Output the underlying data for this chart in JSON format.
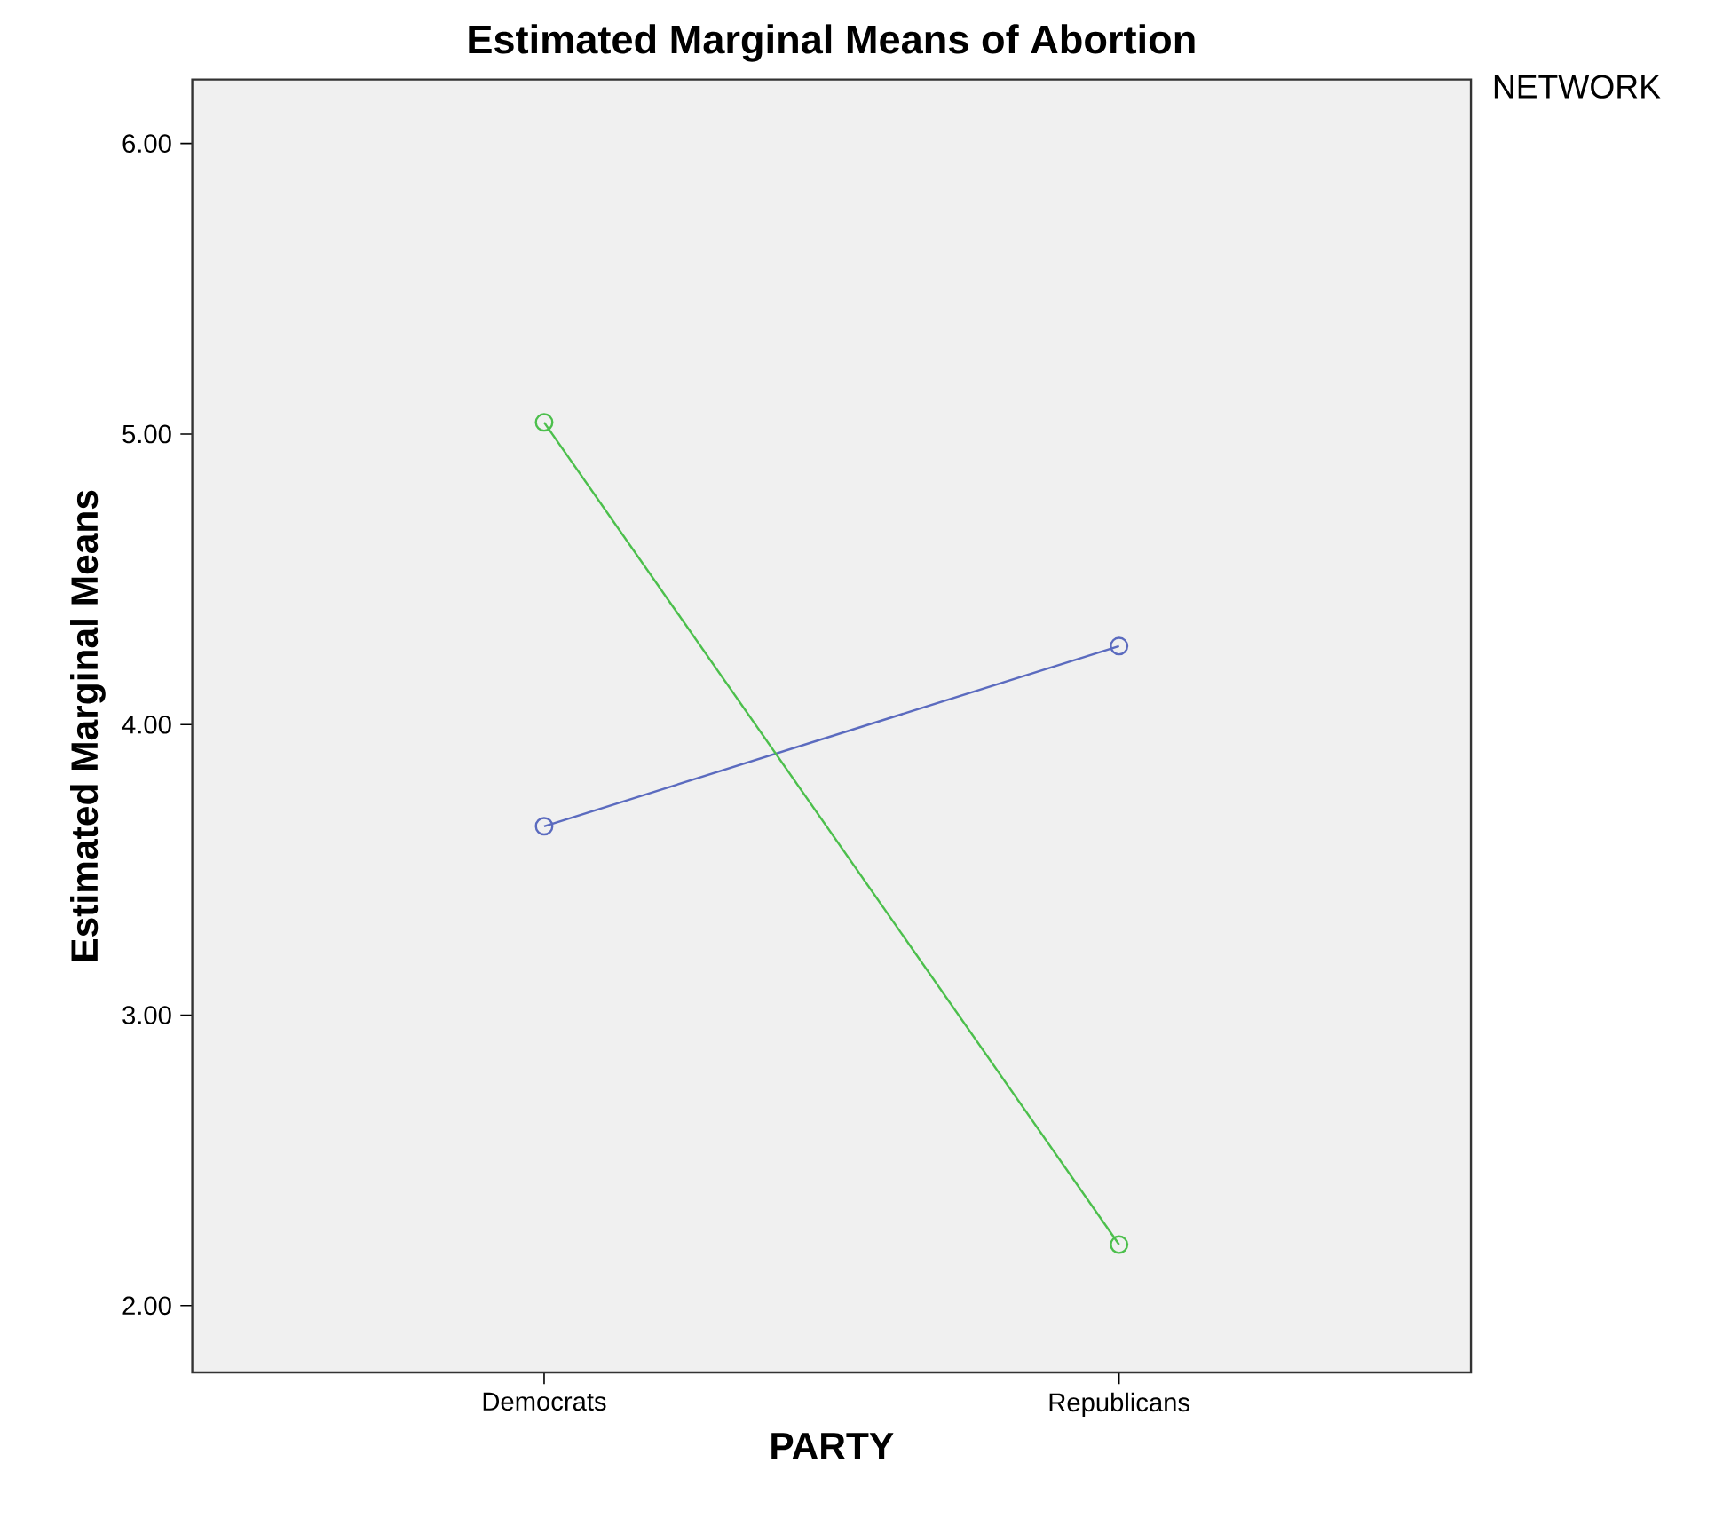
{
  "chart_data": {
    "type": "line",
    "title": "Estimated Marginal Means of Abortion",
    "xlabel": "PARTY",
    "ylabel": "Estimated Marginal Means",
    "legend_title": "NETWORK",
    "marker": "circle",
    "line_style": "solid",
    "grid": false,
    "categories": [
      "Democrats",
      "Republicans"
    ],
    "series": [
      {
        "color": "#5b6bbf",
        "values": [
          3.65,
          4.27
        ]
      },
      {
        "color": "#4cbf4c",
        "values": [
          5.04,
          2.21
        ]
      }
    ],
    "ylim": [
      1.77,
      6.22
    ],
    "yticks": [
      {
        "value": 2,
        "label": "2.00"
      },
      {
        "value": 3,
        "label": "3.00"
      },
      {
        "value": 4,
        "label": "4.00"
      },
      {
        "value": 5,
        "label": "5.00"
      },
      {
        "value": 6,
        "label": "6.00"
      }
    ]
  }
}
